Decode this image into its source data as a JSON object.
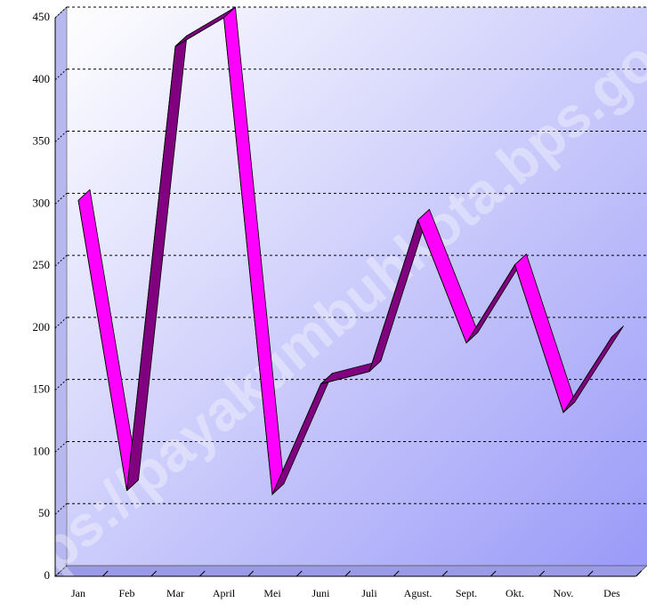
{
  "chart_data": {
    "type": "line",
    "categories": [
      "Jan",
      "Feb",
      "Mar",
      "April",
      "Mei",
      "Juni",
      "Juli",
      "Agust.",
      "Sept.",
      "Okt.",
      "Nov.",
      "Des"
    ],
    "values": [
      303,
      69,
      427,
      450,
      66,
      155,
      165,
      287,
      188,
      251,
      132,
      193
    ],
    "color": "#ff00ff",
    "side_color": "#800080",
    "ylim": [
      0,
      450
    ],
    "yticks": [
      0,
      50,
      100,
      150,
      200,
      250,
      300,
      350,
      400,
      450
    ],
    "grid": true,
    "watermark": "https://payakumbuhkota.bps.go.id"
  }
}
